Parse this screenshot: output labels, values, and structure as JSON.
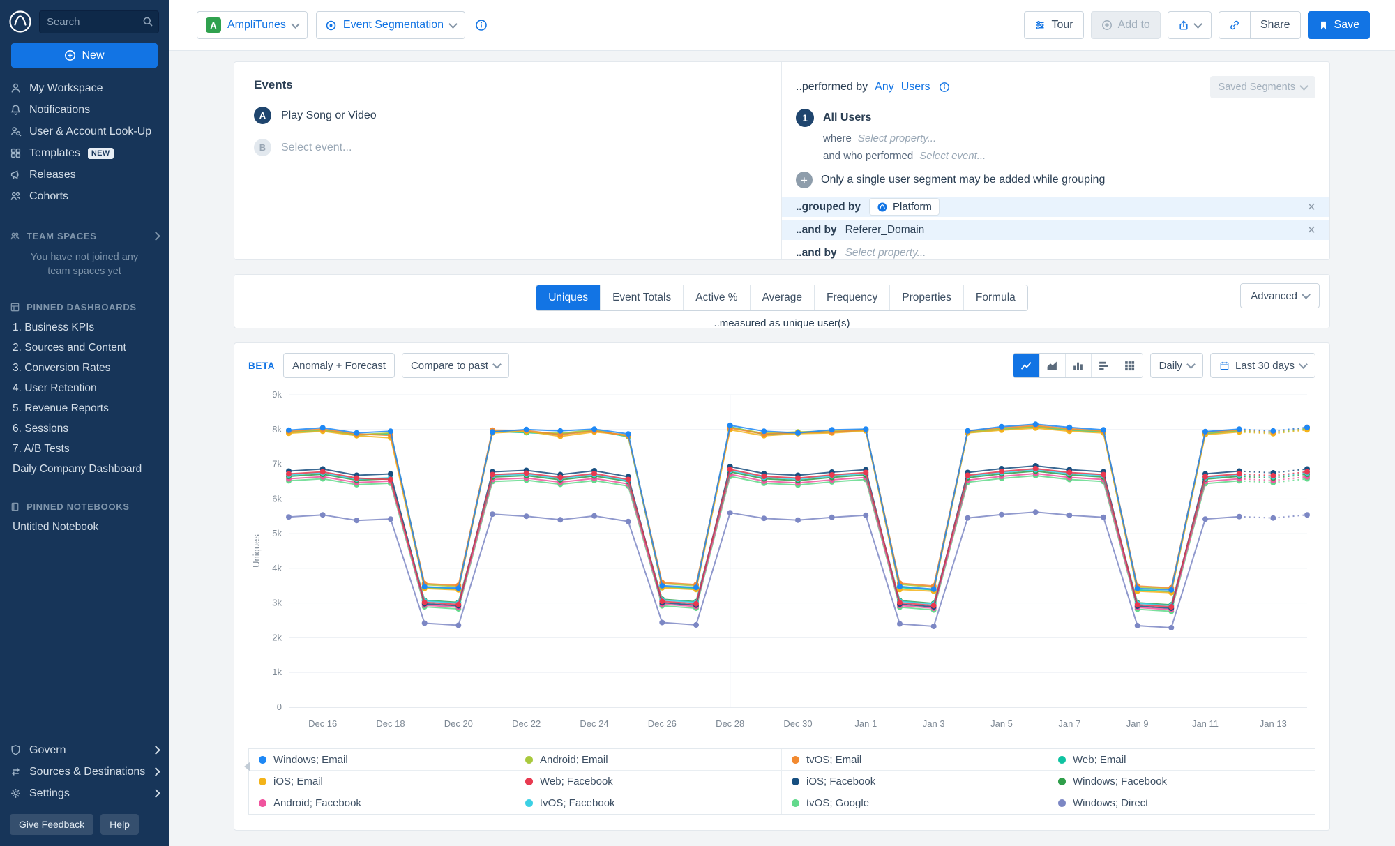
{
  "app": {
    "accent": "#1274e4"
  },
  "sidebar": {
    "search": {
      "placeholder": "Search"
    },
    "new_button": "New",
    "nav": [
      {
        "label": "My Workspace",
        "icon": "user-icon"
      },
      {
        "label": "Notifications",
        "icon": "bell-icon"
      },
      {
        "label": "User & Account Look-Up",
        "icon": "user-search-icon"
      },
      {
        "label": "Templates",
        "icon": "grid-icon",
        "badge": "NEW"
      },
      {
        "label": "Releases",
        "icon": "megaphone-icon"
      },
      {
        "label": "Cohorts",
        "icon": "cohorts-icon"
      }
    ],
    "team_spaces": {
      "header": "TEAM SPACES",
      "empty_text": "You have not joined any team spaces yet"
    },
    "pinned_dashboards": {
      "header": "PINNED DASHBOARDS",
      "items": [
        "1. Business KPIs",
        "2. Sources and Content",
        "3. Conversion Rates",
        "4. User Retention",
        "5. Revenue Reports",
        "6. Sessions",
        "7. A/B Tests",
        "Daily Company Dashboard"
      ]
    },
    "pinned_notebooks": {
      "header": "PINNED NOTEBOOKS",
      "items": [
        "Untitled Notebook"
      ]
    },
    "footer_nav": [
      {
        "label": "Govern",
        "icon": "shield-icon"
      },
      {
        "label": "Sources & Destinations",
        "icon": "swap-icon"
      },
      {
        "label": "Settings",
        "icon": "gear-icon"
      }
    ],
    "footer_buttons": {
      "feedback": "Give Feedback",
      "help": "Help"
    }
  },
  "topbar": {
    "project": "AmpliTunes",
    "project_badge": "A",
    "chart_type": "Event Segmentation",
    "tour": "Tour",
    "add_to": "Add to",
    "share": "Share",
    "save": "Save"
  },
  "events_panel": {
    "title": "Events",
    "rows": [
      {
        "badge": "A",
        "label": "Play Song or Video"
      },
      {
        "badge": "B",
        "label": "Select event..."
      }
    ]
  },
  "segment_panel": {
    "performed_by": "..performed by",
    "any": "Any",
    "users": "Users",
    "saved_segments": "Saved Segments",
    "segment_number": "1",
    "segment_name": "All Users",
    "where_label": "where",
    "where_placeholder": "Select property...",
    "who_label": "and who performed",
    "who_placeholder": "Select event...",
    "grouping_note": "Only a single user segment may be added while grouping",
    "grouped_by_label": "..grouped by",
    "grouped_by_value": "Platform",
    "and_by_label": "..and by",
    "and_by_value": "Referer_Domain",
    "and_by_2_label": "..and by",
    "and_by_2_placeholder": "Select property..."
  },
  "metrics": {
    "tabs": [
      "Uniques",
      "Event Totals",
      "Active %",
      "Average",
      "Frequency",
      "Properties",
      "Formula"
    ],
    "active_tab": "Uniques",
    "measured_as": "..measured as unique user(s)",
    "advanced": "Advanced"
  },
  "chart_controls": {
    "beta": "BETA",
    "anomaly": "Anomaly + Forecast",
    "compare": "Compare to past",
    "granularity": "Daily",
    "range": "Last 30 days"
  },
  "chart_data": {
    "type": "line",
    "ylabel": "Uniques",
    "ylim": [
      0,
      9000
    ],
    "y_tick_step": 1000,
    "x": [
      "Dec 15",
      "Dec 16",
      "Dec 17",
      "Dec 18",
      "Dec 19",
      "Dec 20",
      "Dec 21",
      "Dec 22",
      "Dec 23",
      "Dec 24",
      "Dec 25",
      "Dec 26",
      "Dec 27",
      "Dec 28",
      "Dec 29",
      "Dec 30",
      "Dec 31",
      "Jan 1",
      "Jan 2",
      "Jan 3",
      "Jan 4",
      "Jan 5",
      "Jan 6",
      "Jan 7",
      "Jan 8",
      "Jan 9",
      "Jan 10",
      "Jan 11",
      "Jan 12",
      "Jan 13",
      "Jan 14"
    ],
    "x_tick_start": 1,
    "x_tick_every": 2,
    "marker_x": "Dec 28",
    "forecast_from": 28,
    "legend_order": [
      "Windows; Email",
      "Android; Email",
      "tvOS; Email",
      "Web; Email",
      "iOS; Email",
      "Web; Facebook",
      "iOS; Facebook",
      "Windows; Facebook",
      "Android; Facebook",
      "tvOS; Facebook",
      "tvOS; Google",
      "Windows; Direct"
    ],
    "series": [
      {
        "name": "Windows; Direct",
        "color": "#7c87c4",
        "values": [
          5480,
          5540,
          5380,
          5420,
          2420,
          2360,
          5560,
          5500,
          5400,
          5510,
          5350,
          2440,
          2370,
          5600,
          5440,
          5390,
          5470,
          5530,
          2400,
          2330,
          5450,
          5550,
          5620,
          5530,
          5470,
          2350,
          2290,
          5420,
          5490,
          5450,
          5540
        ]
      },
      {
        "name": "tvOS; Google",
        "color": "#63d98c",
        "values": [
          6520,
          6580,
          6410,
          6450,
          2890,
          2830,
          6500,
          6540,
          6420,
          6530,
          6370,
          2920,
          2850,
          6650,
          6450,
          6400,
          6490,
          6560,
          2880,
          2800,
          6480,
          6590,
          6670,
          6560,
          6500,
          2820,
          2760,
          6440,
          6520,
          6470,
          6580
        ]
      },
      {
        "name": "Android; Facebook",
        "color": "#f0549e",
        "values": [
          6580,
          6640,
          6470,
          6510,
          2940,
          2880,
          6560,
          6600,
          6480,
          6590,
          6430,
          2970,
          2900,
          6710,
          6510,
          6460,
          6550,
          6620,
          2930,
          2850,
          6540,
          6650,
          6730,
          6620,
          6560,
          2870,
          2810,
          6500,
          6580,
          6530,
          6640
        ]
      },
      {
        "name": "Windows; Facebook",
        "color": "#2f9e4a",
        "values": [
          6650,
          6710,
          6540,
          6580,
          3080,
          3020,
          6630,
          6670,
          6550,
          6660,
          6500,
          3110,
          3040,
          6780,
          6580,
          6530,
          6620,
          6690,
          3070,
          2990,
          6610,
          6720,
          6800,
          6690,
          6630,
          3010,
          2950,
          6570,
          6650,
          6600,
          6710
        ]
      },
      {
        "name": "tvOS; Facebook",
        "color": "#3bd0e4",
        "values": [
          6690,
          6750,
          6570,
          6610,
          3060,
          3000,
          6670,
          6710,
          6590,
          6700,
          6530,
          3090,
          3020,
          6820,
          6620,
          6570,
          6660,
          6730,
          3050,
          2970,
          6650,
          6760,
          6840,
          6730,
          6670,
          2990,
          2930,
          6610,
          6690,
          6640,
          6750
        ]
      },
      {
        "name": "iOS; Facebook",
        "color": "#174f80",
        "values": [
          6800,
          6860,
          6680,
          6720,
          2980,
          2920,
          6780,
          6820,
          6700,
          6810,
          6640,
          3010,
          2940,
          6930,
          6730,
          6680,
          6770,
          6840,
          2970,
          2890,
          6760,
          6870,
          6950,
          6840,
          6780,
          2910,
          2850,
          6720,
          6800,
          6750,
          6860
        ]
      },
      {
        "name": "Web; Facebook",
        "color": "#e83a50",
        "values": [
          6720,
          6780,
          6600,
          6560,
          3020,
          2960,
          6700,
          6740,
          6620,
          6730,
          6560,
          3050,
          2980,
          6850,
          6650,
          6600,
          6690,
          6760,
          3010,
          2930,
          6680,
          6790,
          6870,
          6760,
          6700,
          2950,
          2890,
          6640,
          6720,
          6670,
          6780
        ]
      },
      {
        "name": "Web; Email",
        "color": "#0fc3a1",
        "values": [
          7910,
          7970,
          7840,
          7880,
          3450,
          3400,
          7940,
          7910,
          7870,
          7970,
          7790,
          3470,
          3420,
          8080,
          7860,
          7900,
          7920,
          7980,
          3450,
          3380,
          7910,
          8000,
          8070,
          7980,
          7930,
          3380,
          3330,
          7880,
          7950,
          7900,
          8010
        ]
      },
      {
        "name": "Android; Email",
        "color": "#a9c93d",
        "values": [
          7930,
          7990,
          7850,
          7900,
          3530,
          3480,
          7960,
          7930,
          7890,
          7990,
          7800,
          3560,
          3500,
          8060,
          7890,
          7930,
          7950,
          8000,
          3540,
          3460,
          7930,
          8020,
          8090,
          8000,
          7950,
          3460,
          3410,
          7900,
          7970,
          7920,
          8030
        ]
      },
      {
        "name": "iOS; Email",
        "color": "#f3b31a",
        "values": [
          7890,
          7950,
          7820,
          7760,
          3420,
          3380,
          7900,
          7950,
          7800,
          7930,
          7840,
          3440,
          3390,
          7990,
          7820,
          7880,
          7900,
          7960,
          3390,
          3340,
          7900,
          7980,
          8040,
          7950,
          7900,
          3340,
          3300,
          7850,
          7930,
          7880,
          7990
        ]
      },
      {
        "name": "tvOS; Email",
        "color": "#f28a30",
        "values": [
          7950,
          8010,
          7870,
          7830,
          3560,
          3510,
          7980,
          7970,
          7850,
          7960,
          7820,
          3590,
          3530,
          8040,
          7870,
          7910,
          7930,
          7990,
          3570,
          3490,
          7950,
          8050,
          8110,
          8020,
          7960,
          3490,
          3440,
          7920,
          7990,
          7940,
          8060
        ]
      },
      {
        "name": "Windows; Email",
        "color": "#1e88f5",
        "values": [
          7980,
          8050,
          7900,
          7950,
          3470,
          3430,
          7930,
          8000,
          7960,
          8010,
          7870,
          3500,
          3450,
          8120,
          7950,
          7900,
          7990,
          8010,
          3480,
          3400,
          7960,
          8080,
          8150,
          8060,
          7990,
          3420,
          3380,
          7940,
          8010,
          7960,
          8060
        ]
      }
    ]
  }
}
